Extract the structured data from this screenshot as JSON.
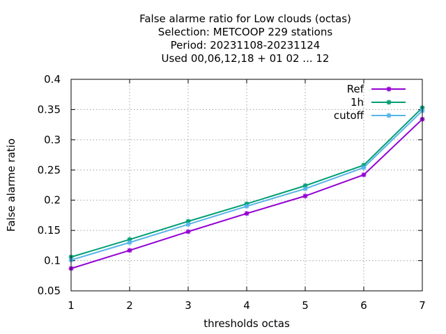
{
  "chart_data": {
    "type": "line",
    "title_lines": [
      "False alarme ratio  for Low clouds (octas)",
      "Selection: METCOOP    229 stations",
      "Period: 20231108-20231124",
      "Used  00,06,12,18 + 01 02 ... 12"
    ],
    "xlabel": "thresholds octas",
    "ylabel": "False alarme ratio",
    "x": [
      1,
      2,
      3,
      4,
      5,
      6,
      7
    ],
    "xticks": [
      "1",
      "2",
      "3",
      "4",
      "5",
      "6",
      "7"
    ],
    "xlim": [
      1,
      7
    ],
    "ylim": [
      0.05,
      0.4
    ],
    "yticks": [
      {
        "v": 0.05,
        "label": "0.05"
      },
      {
        "v": 0.1,
        "label": "0.1"
      },
      {
        "v": 0.15,
        "label": "0.15"
      },
      {
        "v": 0.2,
        "label": "0.2"
      },
      {
        "v": 0.25,
        "label": "0.25"
      },
      {
        "v": 0.3,
        "label": "0.3"
      },
      {
        "v": 0.35,
        "label": "0.35"
      },
      {
        "v": 0.4,
        "label": "0.4"
      }
    ],
    "grid": true,
    "legend_position": "top-right",
    "series": [
      {
        "name": "Ref",
        "color": "#9400d3",
        "values": [
          0.087,
          0.117,
          0.148,
          0.178,
          0.207,
          0.242,
          0.334
        ]
      },
      {
        "name": "1h",
        "color": "#009e73",
        "values": [
          0.106,
          0.135,
          0.165,
          0.194,
          0.224,
          0.258,
          0.353
        ]
      },
      {
        "name": "cutoff",
        "color": "#56b4e9",
        "values": [
          0.101,
          0.13,
          0.16,
          0.19,
          0.219,
          0.254,
          0.348
        ]
      }
    ]
  }
}
